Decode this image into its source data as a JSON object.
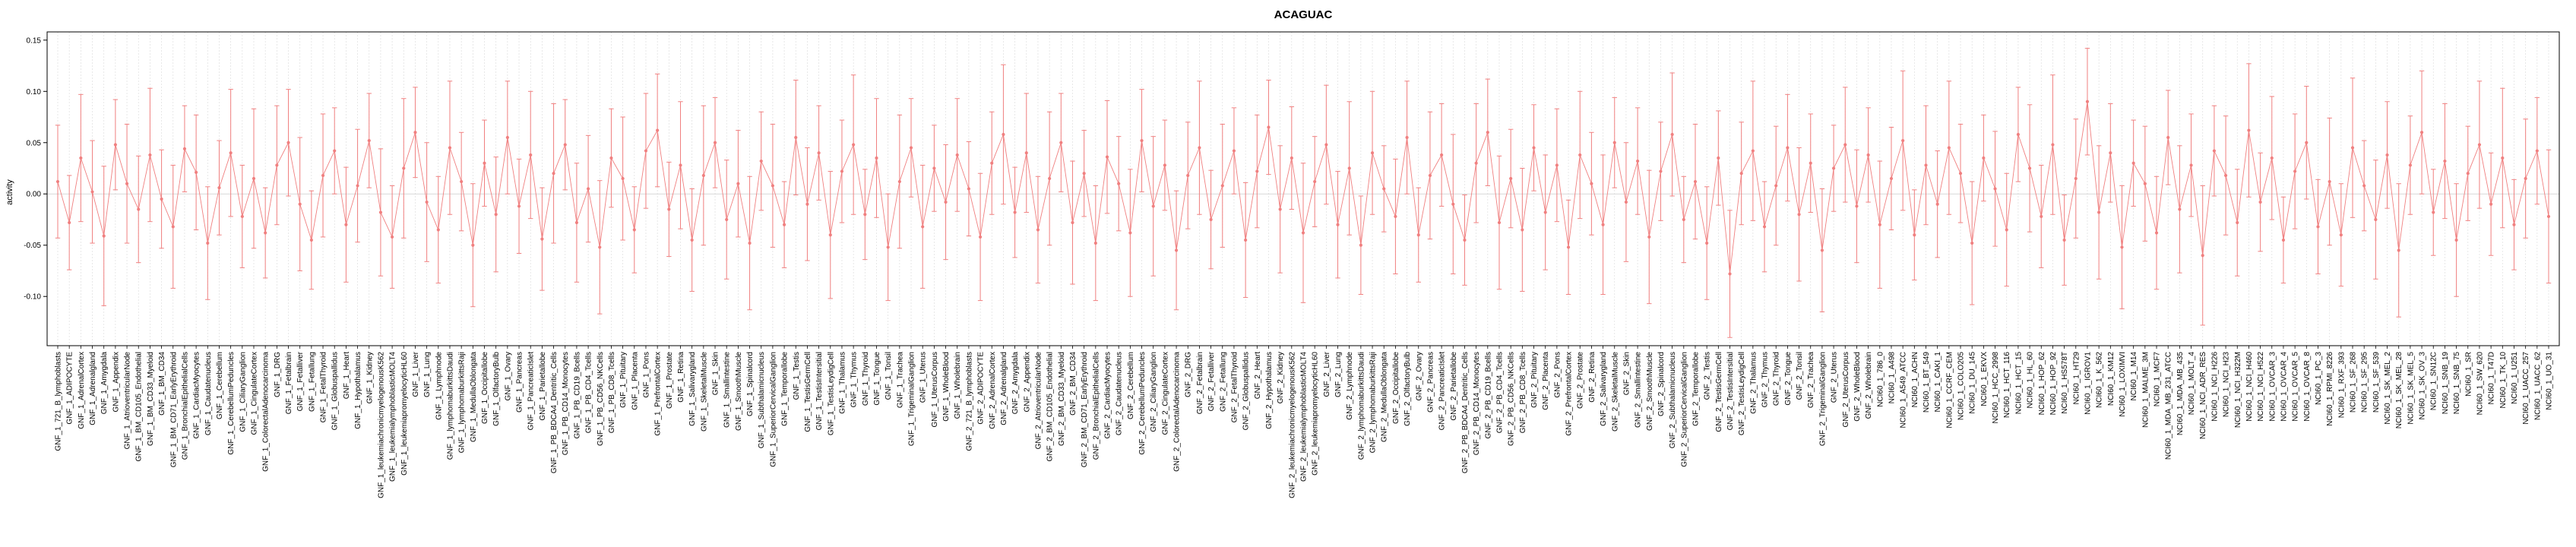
{
  "title": "ACAGUAC",
  "colors": {
    "series": "#f08080",
    "grid": "#dedede",
    "zero_line": "#cccccc",
    "axis": "#000000",
    "background": "#ffffff"
  },
  "chart_data": {
    "type": "scatter",
    "title": "ACAGUAC",
    "xlabel": "",
    "ylabel": "activity",
    "ylim": [
      -0.148,
      0.158
    ],
    "y_ticks": [
      -0.1,
      -0.05,
      0.0,
      0.05,
      0.1,
      0.15
    ],
    "y_tick_labels": [
      "-0.10",
      "-0.05",
      "0.00",
      "0.05",
      "0.10",
      "0.15"
    ],
    "grid": true,
    "error_bars": true,
    "legend": "none",
    "categories": [
      "GNF_1_721_B_lymphoblasts",
      "GNF_1_ADIPOCYTE",
      "GNF_1_AdrenalCortex",
      "GNF_1_Adrenalgland",
      "GNF_1_Amygdala",
      "GNF_1_Appendix",
      "GNF_1_AtrioventricularNode",
      "GNF_1_BM_CD105_Endothelial",
      "GNF_1_BM_CD33_Myeloid",
      "GNF_1_BM_CD34",
      "GNF_1_BM_CD71_EarlyErythroid",
      "GNF_1_BronchialEpithelialCells",
      "GNF_1_CardiacMyocytes",
      "GNF_1_Caudatenucleus",
      "GNF_1_Cerebellum",
      "GNF_1_CerebellumPeduncles",
      "GNF_1_CiliaryGanglion",
      "GNF_1_CingulateCortex",
      "GNF_1_ColorectalAdenocarcinoma",
      "GNF_1_DRG",
      "GNF_1_Fetalbrain",
      "GNF_1_Fetalliver",
      "GNF_1_Fetallung",
      "GNF_1_FetalThyroid",
      "GNF_1_Globuspallidus",
      "GNF_1_Heart",
      "GNF_1_Hypothalamus",
      "GNF_1_Kidney",
      "GNF_1_leukemiachronicmyelogenousK562",
      "GNF_1_leukemialymphoblasticMOLT4",
      "GNF_1_leukemiapromyelocyticHL60",
      "GNF_1_Liver",
      "GNF_1_Lung",
      "GNF_1_Lymphnode",
      "GNF_1_lymphomaburkittsDaudi",
      "GNF_1_lymphomaburkittsRaji",
      "GNF_1_MedullaOblongata",
      "GNF_1_Occipitallobe",
      "GNF_1_OlfactoryBulb",
      "GNF_1_Ovary",
      "GNF_1_Pancreas",
      "GNF_1_PancreaticIslet",
      "GNF_1_Parietallobe",
      "GNF_1_PB_BDCA4_Dentritic_Cells",
      "GNF_1_PB_CD14_Monocytes",
      "GNF_1_PB_CD19_Bcells",
      "GNF_1_PB_CD4_Tcells",
      "GNF_1_PB_CD56_NKCells",
      "GNF_1_PB_CD8_Tcells",
      "GNF_1_Pituitary",
      "GNF_1_Placenta",
      "GNF_1_Pons",
      "GNF_1_PrefrontalCortex",
      "GNF_1_Prostate",
      "GNF_1_Retina",
      "GNF_1_Salivarygland",
      "GNF_1_SkeletalMuscle",
      "GNF_1_Skin",
      "GNF_1_Smallintestine",
      "GNF_1_SmoothMuscle",
      "GNF_1_Spinalcord",
      "GNF_1_Subthalamicnucleus",
      "GNF_1_SuperiorCervicalGanglion",
      "GNF_1_Temporallobe",
      "GNF_1_Testis",
      "GNF_1_TestisGermCell",
      "GNF_1_TestisIntersitial",
      "GNF_1_TestisLeydigCell",
      "GNF_1_Thalamus",
      "GNF_1_Thymus",
      "GNF_1_Thyroid",
      "GNF_1_Tongue",
      "GNF_1_Tonsil",
      "GNF_1_Trachea",
      "GNF_1_TrigeminalGanglion",
      "GNF_1_Uterus",
      "GNF_1_UterusCorpus",
      "GNF_1_WholeBlood",
      "GNF_1_Wholebrain",
      "GNF_2_721_B_lymphoblasts",
      "GNF_2_ADIPOCYTE",
      "GNF_2_AdrenalCortex",
      "GNF_2_Adrenalgland",
      "GNF_2_Amygdala",
      "GNF_2_Appendix",
      "GNF_2_AtrioventricularNode",
      "GNF_2_BM_CD105_Endothelial",
      "GNF_2_BM_CD33_Myeloid",
      "GNF_2_BM_CD34",
      "GNF_2_BM_CD71_EarlyErythroid",
      "GNF_2_BronchialEpithelialCells",
      "GNF_2_CardiacMyocytes",
      "GNF_2_Caudatenucleus",
      "GNF_2_Cerebellum",
      "GNF_2_CerebellumPeduncles",
      "GNF_2_CiliaryGanglion",
      "GNF_2_CingulateCortex",
      "GNF_2_ColorectalAdenocarcinoma",
      "GNF_2_DRG",
      "GNF_2_Fetalbrain",
      "GNF_2_Fetalliver",
      "GNF_2_Fetallung",
      "GNF_2_FetalThyroid",
      "GNF_2_Globuspallidus",
      "GNF_2_Heart",
      "GNF_2_Hypothalamus",
      "GNF_2_Kidney",
      "GNF_2_leukemiachronicmyelogenousK562",
      "GNF_2_leukemialymphoblasticMOLT4",
      "GNF_2_leukemiapromyelocyticHL60",
      "GNF_2_Liver",
      "GNF_2_Lung",
      "GNF_2_Lymphnode",
      "GNF_2_lymphomaburkittsDaudi",
      "GNF_2_lymphomaburkittsRaji",
      "GNF_2_MedullaOblongata",
      "GNF_2_Occipitallobe",
      "GNF_2_OlfactoryBulb",
      "GNF_2_Ovary",
      "GNF_2_Pancreas",
      "GNF_2_PancreaticIslet",
      "GNF_2_Parietallobe",
      "GNF_2_PB_BDCA4_Dentritic_Cells",
      "GNF_2_PB_CD14_Monocytes",
      "GNF_2_PB_CD19_Bcells",
      "GNF_2_PB_CD4_Tcells",
      "GNF_2_PB_CD56_NKCells",
      "GNF_2_PB_CD8_Tcells",
      "GNF_2_Pituitary",
      "GNF_2_Placenta",
      "GNF_2_Pons",
      "GNF_2_PrefrontalCortex",
      "GNF_2_Prostate",
      "GNF_2_Retina",
      "GNF_2_Salivarygland",
      "GNF_2_SkeletalMuscle",
      "GNF_2_Skin",
      "GNF_2_Smallintestine",
      "GNF_2_SmoothMuscle",
      "GNF_2_Spinalcord",
      "GNF_2_Subthalamicnucleus",
      "GNF_2_SuperiorCervicalGanglion",
      "GNF_2_Temporallobe",
      "GNF_2_Testis",
      "GNF_2_TestisGermCell",
      "GNF_2_TestisIntersitial",
      "GNF_2_TestisLeydigCell",
      "GNF_2_Thalamus",
      "GNF_2_Thymus",
      "GNF_2_Thyroid",
      "GNF_2_Tongue",
      "GNF_2_Tonsil",
      "GNF_2_Trachea",
      "GNF_2_TrigeminalGanglion",
      "GNF_2_Uterus",
      "GNF_2_UterusCorpus",
      "GNF_2_WholeBlood",
      "GNF_2_Wholebrain",
      "NCI60_1_786_0",
      "NCI60_1_A498",
      "NCI60_1_A549_ATCC",
      "NCI60_1_ACHN",
      "NCI60_1_BT_549",
      "NCI60_1_CAKI_1",
      "NCI60_1_CCRF_CEM",
      "NCI60_1_COLO205",
      "NCI60_1_DU_145",
      "NCI60_1_EKVX",
      "NCI60_1_HCC_2998",
      "NCI60_1_HCT_116",
      "NCI60_1_HCT_15",
      "NCI60_1_HL_60",
      "NCI60_1_HOP_62",
      "NCI60_1_HOP_92",
      "NCI60_1_HS578T",
      "NCI60_1_HT29",
      "NCI60_1_IGROV1",
      "NCI60_1_K_562",
      "NCI60_1_KM12",
      "NCI60_1_LOXIMVI",
      "NCI60_1_M14",
      "NCI60_1_MALME_3M",
      "NCI60_1_MCF7",
      "NCI60_1_MDA_MB_231_ATCC",
      "NCI60_1_MDA_MB_435",
      "NCI60_1_MOLT_4",
      "NCI60_1_NCI_ADR_RES",
      "NCI60_1_NCI_H226",
      "NCI60_1_NCI_H23",
      "NCI60_1_NCI_H322M",
      "NCI60_1_NCI_H460",
      "NCI60_1_NCI_H522",
      "NCI60_1_OVCAR_3",
      "NCI60_1_OVCAR_4",
      "NCI60_1_OVCAR_5",
      "NCI60_1_OVCAR_8",
      "NCI60_1_PC_3",
      "NCI60_1_RPMI_8226",
      "NCI60_1_RXF_393",
      "NCI60_1_SF_268",
      "NCI60_1_SF_295",
      "NCI60_1_SF_539",
      "NCI60_1_SK_MEL_2",
      "NCI60_1_SK_MEL_28",
      "NCI60_1_SK_MEL_5",
      "NCI60_1_SK_OV_3",
      "NCI60_1_SN12C",
      "NCI60_1_SNB_19",
      "NCI60_1_SNB_75",
      "NCI60_1_SR",
      "NCI60_1_SW_620",
      "NCI60_1_T47D",
      "NCI60_1_TK_10",
      "NCI60_1_U251",
      "NCI60_1_UACC_257",
      "NCI60_1_UACC_62",
      "NCI60_1_UO_31"
    ],
    "values": [
      0.012,
      -0.028,
      0.035,
      0.002,
      -0.041,
      0.048,
      0.01,
      -0.015,
      0.038,
      -0.005,
      -0.032,
      0.044,
      0.021,
      -0.048,
      0.006,
      0.04,
      -0.022,
      0.015,
      -0.038,
      0.028,
      0.05,
      -0.01,
      -0.045,
      0.018,
      0.042,
      -0.03,
      0.008,
      0.052,
      -0.018,
      -0.042,
      0.025,
      0.06,
      -0.008,
      -0.035,
      0.045,
      0.012,
      -0.05,
      0.03,
      -0.02,
      0.055,
      -0.012,
      0.038,
      -0.044,
      0.02,
      0.048,
      -0.028,
      0.005,
      -0.052,
      0.035,
      0.015,
      -0.035,
      0.042,
      0.062,
      -0.015,
      0.028,
      -0.045,
      0.018,
      0.05,
      -0.025,
      0.01,
      -0.048,
      0.032,
      0.008,
      -0.03,
      0.055,
      -0.01,
      0.04,
      -0.04,
      0.022,
      0.048,
      -0.02,
      0.035,
      -0.052,
      0.012,
      0.045,
      -0.032,
      0.025,
      -0.008,
      0.038,
      0.005,
      -0.042,
      0.03,
      0.058,
      -0.018,
      0.04,
      -0.035,
      0.015,
      0.05,
      -0.028,
      0.02,
      -0.048,
      0.036,
      0.01,
      -0.038,
      0.052,
      -0.012,
      0.028,
      -0.055,
      0.018,
      0.045,
      -0.025,
      0.008,
      0.042,
      -0.045,
      0.022,
      0.065,
      -0.015,
      0.035,
      -0.038,
      0.012,
      0.048,
      -0.03,
      0.025,
      -0.05,
      0.04,
      0.005,
      -0.022,
      0.055,
      -0.04,
      0.018,
      0.038,
      -0.01,
      -0.045,
      0.03,
      0.06,
      -0.028,
      0.015,
      -0.035,
      0.045,
      -0.018,
      0.028,
      -0.052,
      0.038,
      0.01,
      -0.03,
      0.05,
      -0.008,
      0.032,
      -0.042,
      0.022,
      0.058,
      -0.025,
      0.012,
      -0.048,
      0.035,
      -0.078,
      0.02,
      0.042,
      -0.032,
      0.008,
      0.045,
      -0.02,
      0.03,
      -0.055,
      0.025,
      0.048,
      -0.012,
      0.038,
      -0.03,
      0.015,
      0.052,
      -0.04,
      0.028,
      -0.01,
      0.045,
      0.02,
      -0.048,
      0.035,
      0.005,
      -0.035,
      0.058,
      0.025,
      -0.022,
      0.048,
      -0.045,
      0.015,
      0.09,
      -0.018,
      0.04,
      -0.052,
      0.03,
      0.01,
      -0.038,
      0.055,
      -0.015,
      0.028,
      -0.06,
      0.042,
      0.018,
      -0.028,
      0.062,
      -0.008,
      0.035,
      -0.045,
      0.022,
      0.05,
      -0.032,
      0.012,
      -0.04,
      0.045,
      0.008,
      -0.025,
      0.038,
      -0.055,
      0.028,
      0.06,
      -0.018,
      0.032,
      -0.045,
      0.02,
      0.048,
      -0.01,
      0.035,
      -0.03,
      0.015,
      0.042,
      -0.022
    ],
    "errors": [
      0.055,
      0.046,
      0.062,
      0.05,
      0.068,
      0.044,
      0.058,
      0.052,
      0.065,
      0.048,
      0.06,
      0.042,
      0.056,
      0.055,
      0.046,
      0.062,
      0.05,
      0.068,
      0.044,
      0.058,
      0.052,
      0.065,
      0.048,
      0.06,
      0.042,
      0.056,
      0.055,
      0.046,
      0.062,
      0.05,
      0.068,
      0.044,
      0.058,
      0.052,
      0.065,
      0.048,
      0.06,
      0.042,
      0.056,
      0.055,
      0.046,
      0.062,
      0.05,
      0.068,
      0.044,
      0.058,
      0.052,
      0.065,
      0.048,
      0.06,
      0.042,
      0.056,
      0.055,
      0.046,
      0.062,
      0.05,
      0.068,
      0.044,
      0.058,
      0.052,
      0.065,
      0.048,
      0.06,
      0.042,
      0.056,
      0.055,
      0.046,
      0.062,
      0.05,
      0.068,
      0.044,
      0.058,
      0.052,
      0.065,
      0.048,
      0.06,
      0.042,
      0.056,
      0.055,
      0.046,
      0.062,
      0.05,
      0.068,
      0.044,
      0.058,
      0.052,
      0.065,
      0.048,
      0.06,
      0.042,
      0.056,
      0.055,
      0.046,
      0.062,
      0.05,
      0.068,
      0.044,
      0.058,
      0.052,
      0.065,
      0.048,
      0.06,
      0.042,
      0.056,
      0.055,
      0.046,
      0.062,
      0.05,
      0.068,
      0.044,
      0.058,
      0.052,
      0.065,
      0.048,
      0.06,
      0.042,
      0.056,
      0.055,
      0.046,
      0.062,
      0.05,
      0.068,
      0.044,
      0.058,
      0.052,
      0.065,
      0.048,
      0.06,
      0.042,
      0.056,
      0.055,
      0.046,
      0.062,
      0.05,
      0.068,
      0.044,
      0.058,
      0.052,
      0.065,
      0.048,
      0.06,
      0.042,
      0.056,
      0.055,
      0.046,
      0.062,
      0.05,
      0.068,
      0.044,
      0.058,
      0.052,
      0.065,
      0.048,
      0.06,
      0.042,
      0.056,
      0.055,
      0.046,
      0.062,
      0.05,
      0.068,
      0.044,
      0.058,
      0.052,
      0.065,
      0.048,
      0.06,
      0.042,
      0.056,
      0.055,
      0.046,
      0.062,
      0.05,
      0.068,
      0.044,
      0.058,
      0.052,
      0.065,
      0.048,
      0.06,
      0.042,
      0.056,
      0.055,
      0.046,
      0.062,
      0.05,
      0.068,
      0.044,
      0.058,
      0.052,
      0.065,
      0.048,
      0.06,
      0.042,
      0.056,
      0.055,
      0.046,
      0.062,
      0.05,
      0.068,
      0.044,
      0.058,
      0.052,
      0.065,
      0.048,
      0.06,
      0.042,
      0.056,
      0.055,
      0.046,
      0.062,
      0.05,
      0.068,
      0.044,
      0.058,
      0.052,
      0.065
    ]
  }
}
